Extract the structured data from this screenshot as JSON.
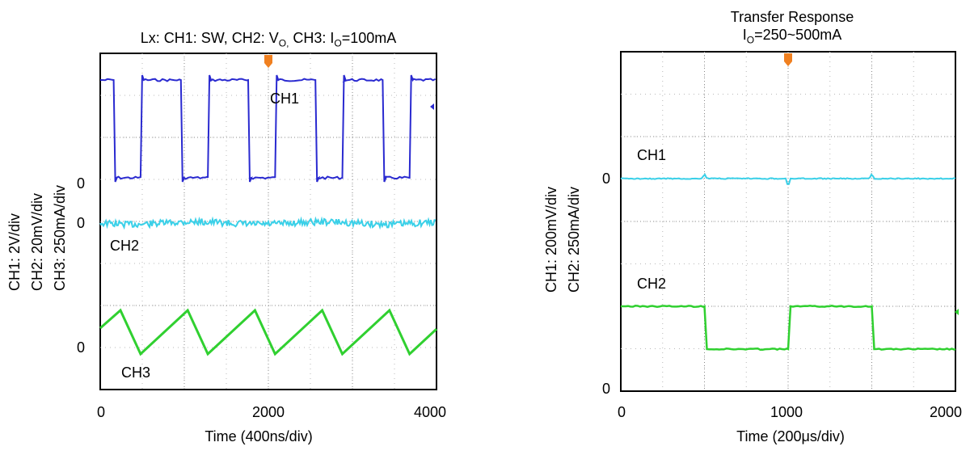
{
  "chart_data": [
    {
      "type": "line",
      "title": "Lx: CH1: SW, CH2: V_O, CH3: I_O=100mA",
      "title_parts": {
        "pre": "Lx: CH1: SW, CH2: V",
        "sub1": "O,",
        "mid": " CH3: I",
        "sub2": "O",
        "post": "=100mA"
      },
      "ylabels": [
        "CH1: 2V/div",
        "CH2: 20mV/div",
        "CH3: 250mA/div"
      ],
      "xlabel": "Time (400ns/div)",
      "xlim": [
        0,
        4000
      ],
      "xticks": [
        "0",
        "2000",
        "4000"
      ],
      "zero_labels": [
        "0",
        "0",
        "0"
      ],
      "grid": true,
      "series": [
        {
          "name": "CH1",
          "color": "#2a2ad0",
          "shape": "square",
          "period_ns": 800,
          "high_ns": 520,
          "first_rise_ns": 480,
          "level_note": "0 to ~2 div"
        },
        {
          "name": "CH2",
          "color": "#3ad0e8",
          "shape": "noise",
          "level_note": "flat at 0"
        },
        {
          "name": "CH3",
          "color": "#30d030",
          "shape": "triangle",
          "period_ns": 800,
          "peak_ns": 240,
          "trough_ns": 480
        }
      ]
    },
    {
      "type": "line",
      "title_line1": "Transfer Response",
      "title_line2": {
        "pre": "I",
        "sub": "O",
        "post": "=250~500mA"
      },
      "ylabels": [
        "CH1: 200mV/div",
        "CH2: 250mA/div"
      ],
      "xlabel": "Time (200μs/div)",
      "xlim": [
        0,
        2000
      ],
      "xticks": [
        "0",
        "1000",
        "2000"
      ],
      "zero_labels": [
        "0",
        "0"
      ],
      "grid": true,
      "series": [
        {
          "name": "CH1",
          "color": "#3ad0e8",
          "shape": "flat",
          "transient_us": [
            500,
            1000,
            1500
          ]
        },
        {
          "name": "CH2",
          "color": "#30d030",
          "shape": "step",
          "high_ma": 500,
          "low_ma": 250,
          "segments_us": [
            [
              0,
              500,
              "high"
            ],
            [
              500,
              1000,
              "low"
            ],
            [
              1000,
              1500,
              "high"
            ],
            [
              1500,
              2000,
              "low"
            ]
          ]
        }
      ]
    }
  ]
}
